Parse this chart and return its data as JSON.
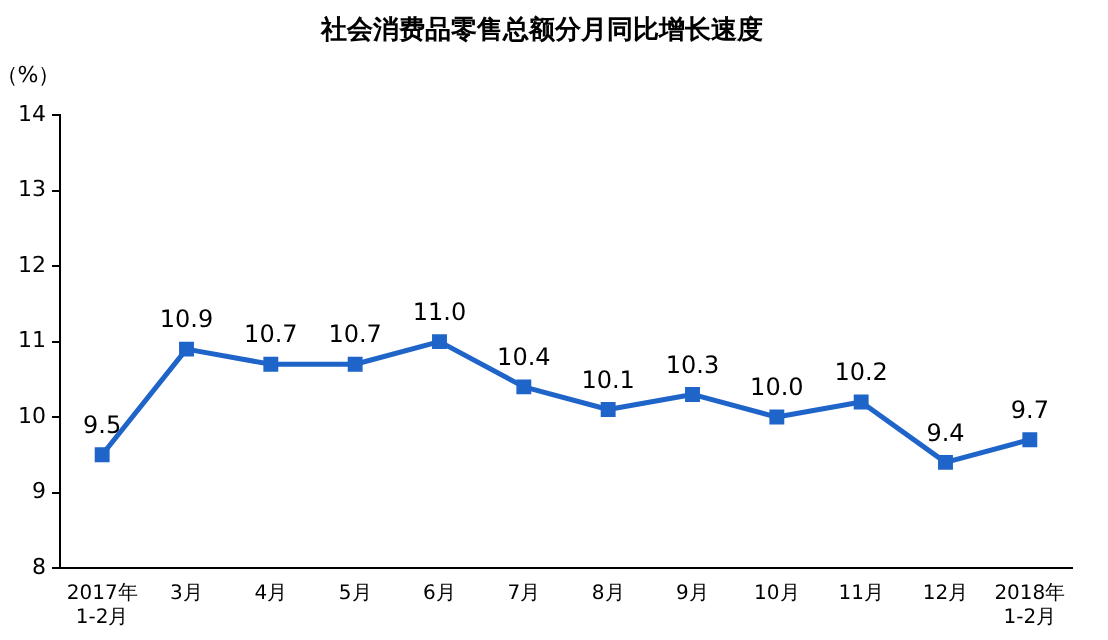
{
  "chart_data": {
    "type": "line",
    "title": "社会消费品零售总额分月同比增长速度",
    "ylabel": "（%）",
    "categories": [
      "2017年\n1-2月",
      "3月",
      "4月",
      "5月",
      "6月",
      "7月",
      "8月",
      "9月",
      "10月",
      "11月",
      "12月",
      "2018年\n1-2月"
    ],
    "series": [
      {
        "color": "#1f64c8",
        "values": [
          9.5,
          10.9,
          10.7,
          10.7,
          11.0,
          10.4,
          10.1,
          10.3,
          10.0,
          10.2,
          9.4,
          9.7
        ],
        "value_labels": [
          "9.5",
          "10.9",
          "10.7",
          "10.7",
          "11.0",
          "10.4",
          "10.1",
          "10.3",
          "10.0",
          "10.2",
          "9.4",
          "9.7"
        ]
      }
    ],
    "ylim": [
      8,
      14
    ],
    "yticks": [
      8,
      9,
      10,
      11,
      12,
      13,
      14
    ],
    "grid": false,
    "legend": false,
    "marker": "square",
    "line_style": "solid"
  }
}
